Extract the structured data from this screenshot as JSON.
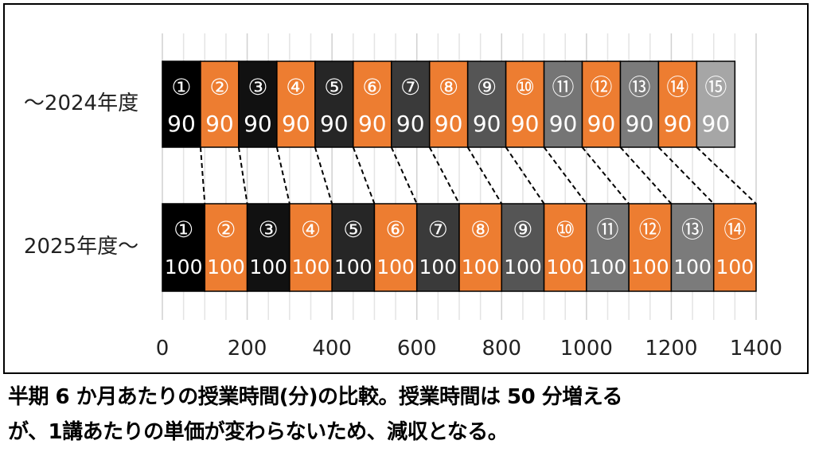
{
  "chart_data": {
    "type": "bar",
    "orientation": "horizontal-stacked",
    "rows": [
      {
        "label": "～2024年度",
        "segments": [
          {
            "mark": "①",
            "value": 90,
            "color": "#000000"
          },
          {
            "mark": "②",
            "value": 90,
            "color": "#ed7d31"
          },
          {
            "mark": "③",
            "value": 90,
            "color": "#111111"
          },
          {
            "mark": "④",
            "value": 90,
            "color": "#ed7d31"
          },
          {
            "mark": "⑤",
            "value": 90,
            "color": "#262626"
          },
          {
            "mark": "⑥",
            "value": 90,
            "color": "#ed7d31"
          },
          {
            "mark": "⑦",
            "value": 90,
            "color": "#3a3a3a"
          },
          {
            "mark": "⑧",
            "value": 90,
            "color": "#ed7d31"
          },
          {
            "mark": "⑨",
            "value": 90,
            "color": "#555555"
          },
          {
            "mark": "⑩",
            "value": 90,
            "color": "#ed7d31"
          },
          {
            "mark": "⑪",
            "value": 90,
            "color": "#757575"
          },
          {
            "mark": "⑫",
            "value": 90,
            "color": "#ed7d31"
          },
          {
            "mark": "⑬",
            "value": 90,
            "color": "#7b7b7b"
          },
          {
            "mark": "⑭",
            "value": 90,
            "color": "#ed7d31"
          },
          {
            "mark": "⑮",
            "value": 90,
            "color": "#a6a6a6"
          }
        ]
      },
      {
        "label": "2025年度～",
        "segments": [
          {
            "mark": "①",
            "value": 100,
            "color": "#000000"
          },
          {
            "mark": "②",
            "value": 100,
            "color": "#ed7d31"
          },
          {
            "mark": "③",
            "value": 100,
            "color": "#111111"
          },
          {
            "mark": "④",
            "value": 100,
            "color": "#ed7d31"
          },
          {
            "mark": "⑤",
            "value": 100,
            "color": "#262626"
          },
          {
            "mark": "⑥",
            "value": 100,
            "color": "#ed7d31"
          },
          {
            "mark": "⑦",
            "value": 100,
            "color": "#3a3a3a"
          },
          {
            "mark": "⑧",
            "value": 100,
            "color": "#ed7d31"
          },
          {
            "mark": "⑨",
            "value": 100,
            "color": "#555555"
          },
          {
            "mark": "⑩",
            "value": 100,
            "color": "#ed7d31"
          },
          {
            "mark": "⑪",
            "value": 100,
            "color": "#757575"
          },
          {
            "mark": "⑫",
            "value": 100,
            "color": "#ed7d31"
          },
          {
            "mark": "⑬",
            "value": 100,
            "color": "#7b7b7b"
          },
          {
            "mark": "⑭",
            "value": 100,
            "color": "#ed7d31"
          }
        ]
      }
    ],
    "xlim": [
      0,
      1400
    ],
    "xticks": [
      "0",
      "200",
      "400",
      "600",
      "800",
      "1000",
      "1200",
      "1400"
    ],
    "grid": true,
    "connectors": "dashed lines from each 2024 segment boundary to the matching 2025 segment boundary"
  },
  "caption": {
    "line1": "半期 6 か月あたりの授業時間(分)の比較。授業時間は 50 分増える",
    "line2": "が、1講あたりの単価が変わらないため、減収となる。"
  }
}
